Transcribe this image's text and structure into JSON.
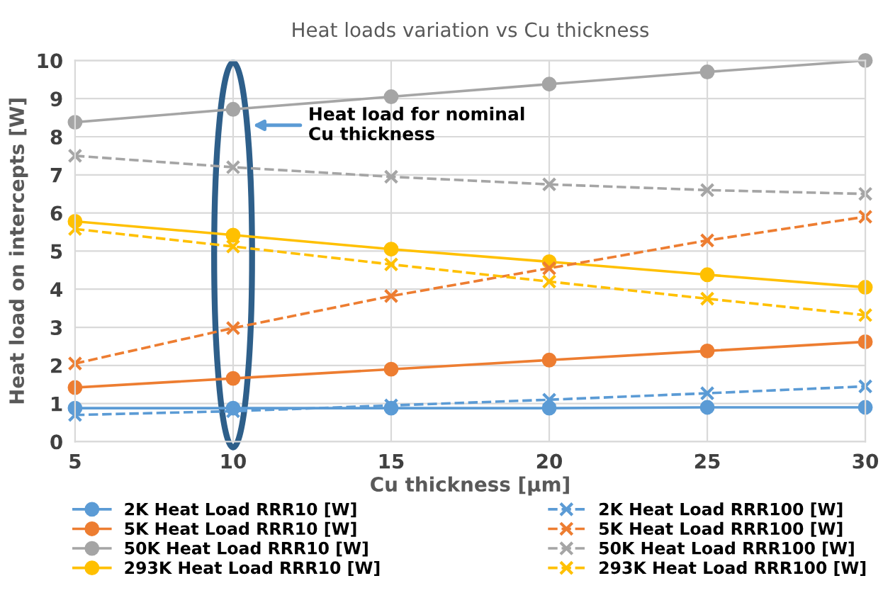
{
  "chart_data": {
    "type": "line",
    "title": "Heat loads variation vs Cu thickness",
    "xlabel": "Cu thickness [µm]",
    "ylabel": "Heat load on intercepts [W]",
    "x": [
      5,
      10,
      15,
      20,
      25,
      30
    ],
    "series": [
      {
        "name": "2K Heat Load RRR10 [W]",
        "color": "#5b9bd5",
        "marker": "circle",
        "line_style": "solid",
        "values": [
          0.88,
          0.88,
          0.88,
          0.88,
          0.9,
          0.9
        ]
      },
      {
        "name": "5K Heat Load RRR10 [W]",
        "color": "#ed7d31",
        "marker": "circle",
        "line_style": "solid",
        "values": [
          1.42,
          1.66,
          1.9,
          2.14,
          2.38,
          2.62
        ]
      },
      {
        "name": "50K Heat Load RRR10 [W]",
        "color": "#a5a5a5",
        "marker": "circle",
        "line_style": "solid",
        "values": [
          8.38,
          8.72,
          9.05,
          9.38,
          9.7,
          10.0
        ]
      },
      {
        "name": "293K Heat Load RRR10 [W]",
        "color": "#ffc000",
        "marker": "circle",
        "line_style": "solid",
        "values": [
          5.78,
          5.42,
          5.05,
          4.72,
          4.38,
          4.05
        ]
      },
      {
        "name": "2K Heat Load RRR100 [W]",
        "color": "#5b9bd5",
        "marker": "cross",
        "line_style": "dashed",
        "values": [
          0.7,
          0.8,
          0.95,
          1.1,
          1.27,
          1.45
        ]
      },
      {
        "name": "5K Heat Load RRR100 [W]",
        "color": "#ed7d31",
        "marker": "cross",
        "line_style": "dashed",
        "values": [
          2.05,
          2.98,
          3.82,
          4.55,
          5.28,
          5.9
        ]
      },
      {
        "name": "50K Heat Load RRR100 [W]",
        "color": "#a5a5a5",
        "marker": "cross",
        "line_style": "dashed",
        "values": [
          7.5,
          7.2,
          6.95,
          6.75,
          6.6,
          6.5
        ]
      },
      {
        "name": "293K Heat Load RRR100 [W]",
        "color": "#ffc000",
        "marker": "cross",
        "line_style": "dashed",
        "values": [
          5.58,
          5.12,
          4.65,
          4.2,
          3.75,
          3.32
        ]
      }
    ],
    "xlim": [
      5,
      30
    ],
    "xticks": [
      5,
      10,
      15,
      20,
      25,
      30
    ],
    "ylim": [
      0,
      10
    ],
    "yticks": [
      0,
      1,
      2,
      3,
      4,
      5,
      6,
      7,
      8,
      9,
      10
    ],
    "grid": true,
    "legend": "bottom",
    "annotations": [
      "Heat load for nominal\nCu thickness"
    ]
  }
}
